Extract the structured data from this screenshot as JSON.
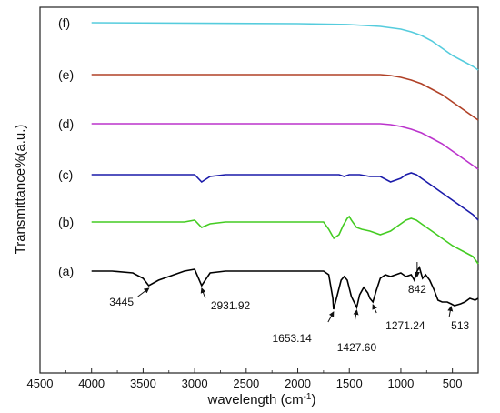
{
  "chart_data": {
    "type": "line",
    "title": "",
    "xlabel": "wavelength (cm",
    "xlabel_superscript": "-1",
    "xlabel_suffix": ")",
    "ylabel": "Transmittance%(a.u.)",
    "xlim": [
      4500,
      250
    ],
    "x_reversed": true,
    "x_ticks": [
      4500,
      4000,
      3500,
      3000,
      2500,
      2000,
      1500,
      1000,
      500
    ],
    "grid": false,
    "legend": "none",
    "series": [
      {
        "name": "(a)",
        "color": "#000000",
        "offset": 0,
        "points": [
          [
            4000,
            0
          ],
          [
            3800,
            0
          ],
          [
            3600,
            -2
          ],
          [
            3500,
            -8
          ],
          [
            3445,
            -16
          ],
          [
            3350,
            -10
          ],
          [
            3200,
            -4
          ],
          [
            3100,
            0
          ],
          [
            3000,
            2
          ],
          [
            2931.92,
            -16
          ],
          [
            2850,
            -2
          ],
          [
            2700,
            0
          ],
          [
            2000,
            0
          ],
          [
            1750,
            0
          ],
          [
            1700,
            -4
          ],
          [
            1660,
            -30
          ],
          [
            1653.14,
            -42
          ],
          [
            1620,
            -28
          ],
          [
            1580,
            -10
          ],
          [
            1550,
            -6
          ],
          [
            1520,
            -10
          ],
          [
            1480,
            -28
          ],
          [
            1427.6,
            -40
          ],
          [
            1400,
            -26
          ],
          [
            1360,
            -18
          ],
          [
            1320,
            -24
          ],
          [
            1300,
            -30
          ],
          [
            1271.24,
            -34
          ],
          [
            1240,
            -22
          ],
          [
            1200,
            -8
          ],
          [
            1150,
            -4
          ],
          [
            1100,
            -6
          ],
          [
            1050,
            -4
          ],
          [
            1000,
            -2
          ],
          [
            950,
            -6
          ],
          [
            900,
            -4
          ],
          [
            870,
            -10
          ],
          [
            842,
            0
          ],
          [
            820,
            4
          ],
          [
            790,
            -8
          ],
          [
            760,
            -4
          ],
          [
            720,
            -10
          ],
          [
            680,
            -20
          ],
          [
            640,
            -32
          ],
          [
            600,
            -34
          ],
          [
            550,
            -34
          ],
          [
            513,
            -36
          ],
          [
            480,
            -38
          ],
          [
            420,
            -36
          ],
          [
            380,
            -34
          ],
          [
            330,
            -30
          ],
          [
            280,
            -32
          ],
          [
            250,
            -30
          ]
        ]
      },
      {
        "name": "(b)",
        "color": "#44cc22",
        "offset": 0,
        "points": [
          [
            4000,
            0
          ],
          [
            3300,
            0
          ],
          [
            3100,
            0
          ],
          [
            3000,
            2
          ],
          [
            2931.92,
            -6
          ],
          [
            2850,
            -2
          ],
          [
            2700,
            0
          ],
          [
            2000,
            0
          ],
          [
            1750,
            0
          ],
          [
            1700,
            -8
          ],
          [
            1650,
            -18
          ],
          [
            1600,
            -14
          ],
          [
            1560,
            -4
          ],
          [
            1520,
            4
          ],
          [
            1500,
            6
          ],
          [
            1480,
            2
          ],
          [
            1430,
            -6
          ],
          [
            1380,
            -8
          ],
          [
            1300,
            -10
          ],
          [
            1200,
            -14
          ],
          [
            1100,
            -10
          ],
          [
            1000,
            -2
          ],
          [
            950,
            2
          ],
          [
            900,
            4
          ],
          [
            850,
            2
          ],
          [
            800,
            -2
          ],
          [
            700,
            -10
          ],
          [
            600,
            -18
          ],
          [
            500,
            -26
          ],
          [
            400,
            -32
          ],
          [
            300,
            -38
          ],
          [
            250,
            -46
          ]
        ]
      },
      {
        "name": "(c)",
        "color": "#1a1aaa",
        "offset": 0,
        "points": [
          [
            4000,
            0
          ],
          [
            3100,
            0
          ],
          [
            3000,
            0
          ],
          [
            2931.92,
            -8
          ],
          [
            2850,
            -2
          ],
          [
            2700,
            0
          ],
          [
            2000,
            0
          ],
          [
            1600,
            0
          ],
          [
            1550,
            -2
          ],
          [
            1500,
            0
          ],
          [
            1400,
            0
          ],
          [
            1300,
            -2
          ],
          [
            1200,
            -2
          ],
          [
            1100,
            -8
          ],
          [
            1000,
            -4
          ],
          [
            950,
            0
          ],
          [
            900,
            2
          ],
          [
            850,
            0
          ],
          [
            800,
            -4
          ],
          [
            700,
            -12
          ],
          [
            600,
            -20
          ],
          [
            500,
            -28
          ],
          [
            400,
            -36
          ],
          [
            300,
            -44
          ],
          [
            250,
            -50
          ]
        ]
      },
      {
        "name": "(d)",
        "color": "#bb33cc",
        "offset": 0,
        "points": [
          [
            4000,
            0
          ],
          [
            2000,
            0
          ],
          [
            1300,
            0
          ],
          [
            1200,
            0
          ],
          [
            1100,
            -1
          ],
          [
            1000,
            -3
          ],
          [
            900,
            -6
          ],
          [
            800,
            -10
          ],
          [
            700,
            -16
          ],
          [
            600,
            -22
          ],
          [
            500,
            -30
          ],
          [
            400,
            -38
          ],
          [
            300,
            -46
          ],
          [
            250,
            -50
          ]
        ]
      },
      {
        "name": "(e)",
        "color": "#b04026",
        "offset": 0,
        "points": [
          [
            4000,
            0
          ],
          [
            2000,
            0
          ],
          [
            1300,
            0
          ],
          [
            1200,
            0
          ],
          [
            1100,
            -1
          ],
          [
            1000,
            -3
          ],
          [
            900,
            -6
          ],
          [
            800,
            -10
          ],
          [
            700,
            -16
          ],
          [
            600,
            -22
          ],
          [
            500,
            -30
          ],
          [
            400,
            -38
          ],
          [
            300,
            -46
          ],
          [
            250,
            -50
          ]
        ]
      },
      {
        "name": "(f)",
        "color": "#55ccdd",
        "offset": 0,
        "points": [
          [
            4000,
            0
          ],
          [
            2000,
            -1
          ],
          [
            1500,
            -2
          ],
          [
            1200,
            -4
          ],
          [
            1000,
            -7
          ],
          [
            900,
            -10
          ],
          [
            800,
            -14
          ],
          [
            700,
            -20
          ],
          [
            600,
            -28
          ],
          [
            500,
            -36
          ],
          [
            400,
            -42
          ],
          [
            300,
            -48
          ],
          [
            250,
            -52
          ]
        ]
      }
    ],
    "annotations": [
      {
        "text": "3445",
        "x": 3445,
        "series": "(a)"
      },
      {
        "text": "2931.92",
        "x": 2931.92,
        "series": "(a)"
      },
      {
        "text": "1653.14",
        "x": 1653.14,
        "series": "(a)"
      },
      {
        "text": "1427.60",
        "x": 1427.6,
        "series": "(a)"
      },
      {
        "text": "1271.24",
        "x": 1271.24,
        "series": "(a)"
      },
      {
        "text": "842",
        "x": 842,
        "series": "(a)"
      },
      {
        "text": "513",
        "x": 513,
        "series": "(a)"
      }
    ]
  }
}
